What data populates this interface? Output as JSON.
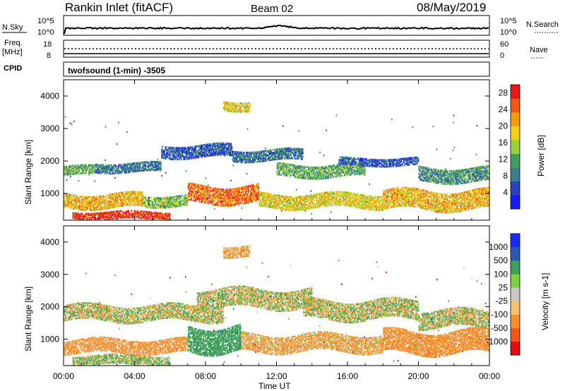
{
  "header": {
    "station": "Rankin Inlet (fitACF)",
    "beam": "Beam 02",
    "date": "08/May/2019"
  },
  "side_labels": {
    "nsky": "N.Sky",
    "freq_top": "Freq.",
    "freq_unit": "[MHz]",
    "cpid": "CPID",
    "nsearch": "N.Search",
    "nave": "Nave",
    "nsky_top_tick": "10^5",
    "nsky_bottom_tick": "10^0",
    "nsearch_top_tick": "10^5",
    "nsearch_bottom_tick": "10^0",
    "freq_top_tick": "18",
    "freq_bottom_tick": "8",
    "nave_top_tick": "60",
    "nave_bottom_tick": "0"
  },
  "cpid_text": "twofsound (1-min) -3505",
  "colors": {
    "power_scale": [
      "#1a1aff",
      "#2a44b8",
      "#3b7f8f",
      "#3ea05a",
      "#9ad03a",
      "#f2cf1a",
      "#f59a10",
      "#f05a10",
      "#e41a1a"
    ],
    "velocity_scale": [
      "#e01010",
      "#f0581a",
      "#f59030",
      "#f5c070",
      "#c8c8c4",
      "#7fd040",
      "#3ea05a",
      "#2a5ab0",
      "#1a2aff"
    ]
  },
  "chart_data": [
    {
      "type": "heatmap",
      "name": "power",
      "ylabel": "Slant Range [km]",
      "xlabel": "Time UT",
      "x_ticks": [
        "00:00",
        "04:00",
        "08:00",
        "12:00",
        "16:00",
        "20:00",
        "00:00"
      ],
      "y_ticks": [
        "1000",
        "2000",
        "3000",
        "4000"
      ],
      "ylim": [
        180,
        4500
      ],
      "xlim_hours": [
        0,
        24
      ],
      "colorbar_label": "Power [dB]",
      "colorbar_ticks": [
        "4",
        "8",
        "12",
        "16",
        "20",
        "24",
        "28"
      ],
      "colorbar_range": [
        0,
        30
      ],
      "echo_bands": [
        {
          "t0": 0.0,
          "t1": 1.8,
          "r0": 1550,
          "r1": 1850,
          "value": 12
        },
        {
          "t0": 1.8,
          "t1": 5.5,
          "r0": 1650,
          "r1": 1950,
          "value": 8
        },
        {
          "t0": 5.5,
          "t1": 9.5,
          "r0": 2100,
          "r1": 2500,
          "value": 6
        },
        {
          "t0": 9.5,
          "t1": 13.5,
          "r0": 2000,
          "r1": 2350,
          "value": 8
        },
        {
          "t0": 12.0,
          "t1": 17.0,
          "r0": 1500,
          "r1": 1900,
          "value": 12
        },
        {
          "t0": 15.5,
          "t1": 20.0,
          "r0": 1850,
          "r1": 2100,
          "value": 6
        },
        {
          "t0": 20.0,
          "t1": 24.0,
          "r0": 1350,
          "r1": 1800,
          "value": 10
        },
        {
          "t0": 0.0,
          "t1": 4.5,
          "r0": 550,
          "r1": 1000,
          "value": 20
        },
        {
          "t0": 4.5,
          "t1": 7.0,
          "r0": 600,
          "r1": 950,
          "value": 14
        },
        {
          "t0": 7.0,
          "t1": 11.0,
          "r0": 700,
          "r1": 1250,
          "value": 24
        },
        {
          "t0": 11.0,
          "t1": 18.0,
          "r0": 550,
          "r1": 1000,
          "value": 18
        },
        {
          "t0": 18.0,
          "t1": 24.0,
          "r0": 500,
          "r1": 1100,
          "value": 20
        },
        {
          "t0": 0.5,
          "t1": 6.0,
          "r0": 200,
          "r1": 450,
          "value": 28
        },
        {
          "t0": 9.0,
          "t1": 10.5,
          "r0": 3550,
          "r1": 3850,
          "value": 18
        }
      ]
    },
    {
      "type": "heatmap",
      "name": "velocity",
      "ylabel": "Slant Range [km]",
      "xlabel": "Time UT",
      "x_ticks": [
        "00:00",
        "04:00",
        "08:00",
        "12:00",
        "16:00",
        "20:00",
        "00:00"
      ],
      "y_ticks": [
        "1000",
        "2000",
        "3000",
        "4000"
      ],
      "ylim": [
        180,
        4500
      ],
      "xlim_hours": [
        0,
        24
      ],
      "colorbar_label": "Velocity [m s-1]",
      "colorbar_ticks": [
        "1000",
        "500",
        "100",
        "25",
        "-25",
        "-100",
        "-500",
        "-1000"
      ],
      "echo_bands": [
        {
          "t0": 0.0,
          "t1": 9.0,
          "r0": 1550,
          "r1": 2050,
          "value": 0
        },
        {
          "t0": 7.5,
          "t1": 14.0,
          "r0": 1950,
          "r1": 2550,
          "value": 0
        },
        {
          "t0": 13.5,
          "t1": 20.0,
          "r0": 1600,
          "r1": 2200,
          "value": 0
        },
        {
          "t0": 20.0,
          "t1": 24.0,
          "r0": 1350,
          "r1": 1900,
          "value": 0
        },
        {
          "t0": 0.0,
          "t1": 7.0,
          "r0": 550,
          "r1": 1000,
          "value": -200
        },
        {
          "t0": 7.0,
          "t1": 10.0,
          "r0": 600,
          "r1": 1400,
          "value": 300
        },
        {
          "t0": 10.0,
          "t1": 18.0,
          "r0": 600,
          "r1": 1150,
          "value": -150
        },
        {
          "t0": 18.0,
          "t1": 24.0,
          "r0": 550,
          "r1": 1250,
          "value": -300
        },
        {
          "t0": 0.5,
          "t1": 6.0,
          "r0": 200,
          "r1": 500,
          "value": 50
        },
        {
          "t0": 9.0,
          "t1": 10.5,
          "r0": 3550,
          "r1": 3900,
          "value": -150
        }
      ]
    }
  ]
}
